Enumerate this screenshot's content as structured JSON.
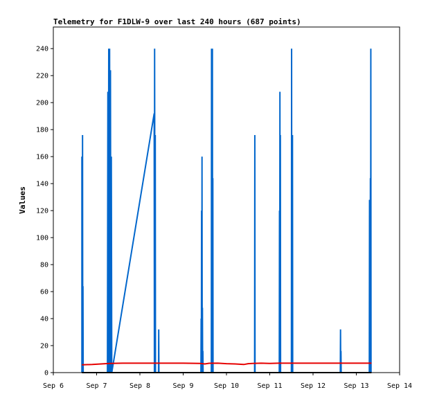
{
  "chart_data": {
    "type": "line",
    "title": "Telemetry for F1DLW-9 over last 240 hours (687 points)",
    "ylabel": "Values",
    "xlabel": "",
    "x_tick_labels": [
      "Sep 6",
      "Sep 7",
      "Sep 8",
      "Sep 9",
      "Sep 10",
      "Sep 11",
      "Sep 12",
      "Sep 13",
      "Sep 14"
    ],
    "y_ticks": [
      0,
      20,
      40,
      60,
      80,
      100,
      120,
      140,
      160,
      180,
      200,
      220,
      240
    ],
    "xlim": [
      0,
      8
    ],
    "ylim": [
      0,
      256
    ],
    "grid": false,
    "series": [
      {
        "color": "#0066cc",
        "points": [
          [
            0.66,
            0
          ],
          [
            0.66,
            160
          ],
          [
            0.67,
            0
          ],
          [
            0.675,
            176
          ],
          [
            0.68,
            0
          ],
          [
            0.685,
            64
          ],
          [
            0.69,
            0
          ],
          [
            1.25,
            0
          ],
          [
            1.26,
            208
          ],
          [
            1.27,
            0
          ],
          [
            1.28,
            240
          ],
          [
            1.29,
            0
          ],
          [
            1.3,
            240
          ],
          [
            1.31,
            0
          ],
          [
            1.32,
            224
          ],
          [
            1.33,
            0
          ],
          [
            1.34,
            160
          ],
          [
            1.35,
            0
          ],
          [
            2.33,
            192
          ],
          [
            2.335,
            0
          ],
          [
            2.34,
            240
          ],
          [
            2.35,
            0
          ],
          [
            2.355,
            176
          ],
          [
            2.36,
            0
          ],
          [
            2.43,
            0
          ],
          [
            2.435,
            32
          ],
          [
            2.44,
            0
          ],
          [
            3.41,
            0
          ],
          [
            3.415,
            40
          ],
          [
            3.42,
            0
          ],
          [
            3.425,
            120
          ],
          [
            3.43,
            0
          ],
          [
            3.435,
            160
          ],
          [
            3.44,
            0
          ],
          [
            3.445,
            48
          ],
          [
            3.45,
            0
          ],
          [
            3.455,
            16
          ],
          [
            3.46,
            0
          ],
          [
            3.65,
            0
          ],
          [
            3.655,
            240
          ],
          [
            3.66,
            0
          ],
          [
            3.665,
            240
          ],
          [
            3.67,
            0
          ],
          [
            3.675,
            240
          ],
          [
            3.68,
            0
          ],
          [
            3.685,
            144
          ],
          [
            3.69,
            0
          ],
          [
            4.65,
            0
          ],
          [
            4.655,
            176
          ],
          [
            4.66,
            0
          ],
          [
            5.22,
            0
          ],
          [
            5.225,
            120
          ],
          [
            5.23,
            0
          ],
          [
            5.235,
            208
          ],
          [
            5.24,
            0
          ],
          [
            5.245,
            176
          ],
          [
            5.25,
            0
          ],
          [
            5.5,
            0
          ],
          [
            5.505,
            240
          ],
          [
            5.51,
            0
          ],
          [
            5.515,
            112
          ],
          [
            5.52,
            0
          ],
          [
            5.525,
            176
          ],
          [
            5.53,
            0
          ],
          [
            6.63,
            0
          ],
          [
            6.635,
            32
          ],
          [
            6.64,
            0
          ],
          [
            6.645,
            16
          ],
          [
            6.65,
            0
          ],
          [
            7.3,
            0
          ],
          [
            7.305,
            128
          ],
          [
            7.31,
            0
          ],
          [
            7.315,
            96
          ],
          [
            7.32,
            0
          ],
          [
            7.325,
            144
          ],
          [
            7.33,
            0
          ],
          [
            7.335,
            240
          ],
          [
            7.34,
            0
          ]
        ]
      },
      {
        "color": "#e60000",
        "points": [
          [
            0.66,
            5.8
          ],
          [
            0.9,
            6.0
          ],
          [
            1.1,
            6.4
          ],
          [
            1.3,
            6.8
          ],
          [
            1.6,
            7.0
          ],
          [
            2.0,
            7.0
          ],
          [
            2.5,
            7.0
          ],
          [
            3.0,
            7.0
          ],
          [
            3.4,
            6.8
          ],
          [
            3.5,
            6.4
          ],
          [
            3.6,
            6.9
          ],
          [
            3.8,
            7.0
          ],
          [
            4.0,
            6.6
          ],
          [
            4.2,
            6.4
          ],
          [
            4.4,
            6.0
          ],
          [
            4.5,
            6.6
          ],
          [
            4.6,
            6.8
          ],
          [
            4.8,
            7.0
          ],
          [
            5.0,
            6.8
          ],
          [
            5.2,
            7.0
          ],
          [
            5.5,
            7.0
          ],
          [
            6.0,
            7.0
          ],
          [
            6.5,
            7.0
          ],
          [
            7.0,
            7.0
          ],
          [
            7.35,
            7.0
          ]
        ]
      },
      {
        "color": "#000000",
        "points": [
          [
            0.66,
            0
          ],
          [
            7.35,
            0
          ]
        ]
      }
    ]
  }
}
